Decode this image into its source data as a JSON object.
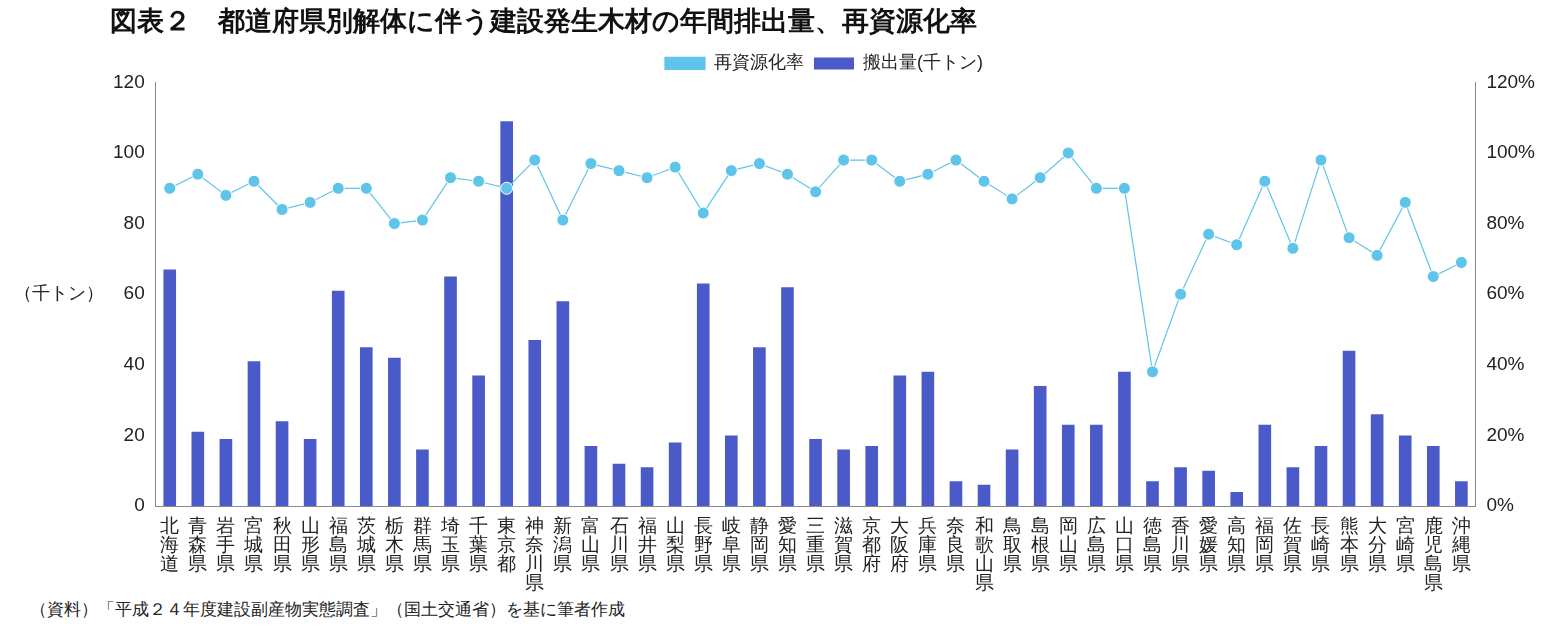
{
  "chart_data": {
    "type": "bar",
    "title": "図表２　都道府県別解体に伴う建設発生木材の年間排出量、再資源化率",
    "y_label": "（千トン）",
    "source": "（資料）「平成２４年度建設副産物実態調査」（国土交通省）を基に筆者作成",
    "categories": [
      "北海道",
      "青森県",
      "岩手県",
      "宮城県",
      "秋田県",
      "山形県",
      "福島県",
      "茨城県",
      "栃木県",
      "群馬県",
      "埼玉県",
      "千葉県",
      "東京都",
      "神奈川県",
      "新潟県",
      "富山県",
      "石川県",
      "福井県",
      "山梨県",
      "長野県",
      "岐阜県",
      "静岡県",
      "愛知県",
      "三重県",
      "滋賀県",
      "京都府",
      "大阪府",
      "兵庫県",
      "奈良県",
      "和歌山県",
      "鳥取県",
      "島根県",
      "岡山県",
      "広島県",
      "山口県",
      "徳島県",
      "香川県",
      "愛媛県",
      "高知県",
      "福岡県",
      "佐賀県",
      "長崎県",
      "熊本県",
      "大分県",
      "宮崎県",
      "鹿児島県",
      "沖縄県"
    ],
    "series": [
      {
        "name": "搬出量(千トン)",
        "type": "bar",
        "color": "#4a5ac8",
        "values": [
          67,
          21,
          19,
          41,
          24,
          19,
          61,
          45,
          42,
          16,
          65,
          37,
          109,
          47,
          58,
          17,
          12,
          11,
          18,
          63,
          20,
          45,
          62,
          19,
          16,
          17,
          37,
          38,
          7,
          6,
          16,
          34,
          23,
          23,
          38,
          7,
          11,
          10,
          4,
          23,
          11,
          17,
          44,
          26,
          20,
          17,
          7
        ]
      },
      {
        "name": "再資源化率",
        "type": "line",
        "axis": "y2",
        "color": "#5ec4ea",
        "marker": "circle",
        "line_style": "solid",
        "values": [
          90,
          94,
          88,
          92,
          84,
          86,
          90,
          90,
          80,
          81,
          93,
          92,
          90,
          98,
          81,
          97,
          95,
          93,
          96,
          83,
          95,
          97,
          94,
          89,
          98,
          98,
          92,
          94,
          98,
          92,
          87,
          93,
          100,
          90,
          90,
          38,
          60,
          77,
          74,
          92,
          73,
          98,
          76,
          71,
          86,
          65,
          69
        ]
      }
    ],
    "ylim": [
      0,
      120
    ],
    "yticks": [
      0,
      20,
      40,
      60,
      80,
      100,
      120
    ],
    "y2lim": [
      0,
      120
    ],
    "y2ticks": [
      {
        "value": 0,
        "label": "0%"
      },
      {
        "value": 20,
        "label": "20%"
      },
      {
        "value": 40,
        "label": "40%"
      },
      {
        "value": 60,
        "label": "60%"
      },
      {
        "value": 80,
        "label": "80%"
      },
      {
        "value": 100,
        "label": "100%"
      },
      {
        "value": 120,
        "label": "120%"
      }
    ],
    "grid": false,
    "legend": "top"
  }
}
